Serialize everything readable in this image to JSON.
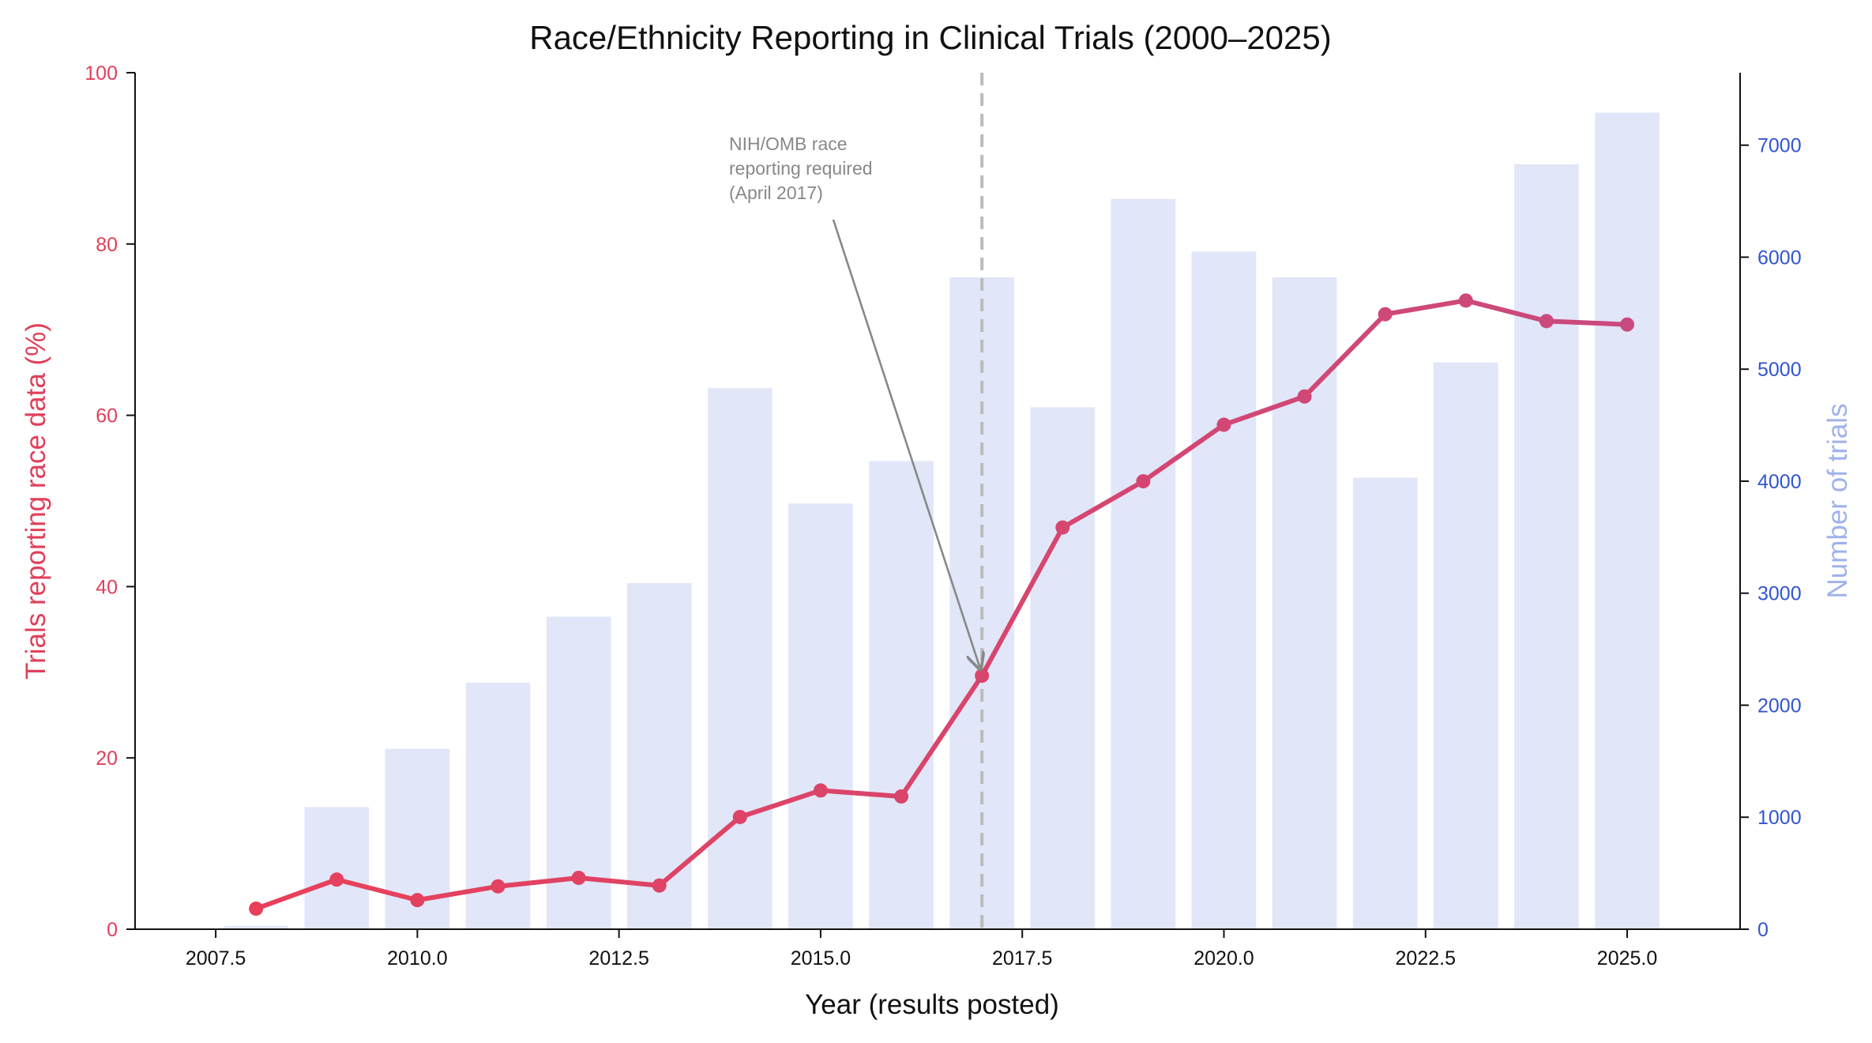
{
  "chart_data": {
    "type": "bar",
    "title": "Race/Ethnicity Reporting in Clinical Trials (2000–2025)",
    "xlabel": "Year (results posted)",
    "ylabel_left": "Trials reporting race data (%)",
    "ylabel_right": "Number of trials",
    "xlim": [
      2006.5,
      2026.4
    ],
    "ylim_left": [
      0,
      100
    ],
    "ylim_right": [
      0,
      7647
    ],
    "x_ticks": [
      "2007.5",
      "2010.0",
      "2012.5",
      "2015.0",
      "2017.5",
      "2020.0",
      "2022.5",
      "2025.0"
    ],
    "y_left_ticks": [
      "0",
      "20",
      "40",
      "60",
      "80",
      "100"
    ],
    "y_right_ticks": [
      "0",
      "1000",
      "2000",
      "3000",
      "4000",
      "5000",
      "6000",
      "7000"
    ],
    "grid": false,
    "years": [
      2008,
      2009,
      2010,
      2011,
      2012,
      2013,
      2014,
      2015,
      2016,
      2017,
      2018,
      2019,
      2020,
      2021,
      2022,
      2023,
      2024,
      2025
    ],
    "series": [
      {
        "name": "Number of trials",
        "type": "bar",
        "axis": "right",
        "values": [
          30,
          1090,
          1610,
          2200,
          2790,
          3090,
          4830,
          3800,
          4180,
          5820,
          4660,
          6520,
          6050,
          5820,
          4030,
          5060,
          6830,
          7290
        ]
      },
      {
        "name": "Trials reporting race data (%)",
        "type": "line",
        "axis": "left",
        "values": [
          2.4,
          5.8,
          3.4,
          5.0,
          6.0,
          5.1,
          13.1,
          16.2,
          15.5,
          29.6,
          46.9,
          52.3,
          58.9,
          62.2,
          71.8,
          73.4,
          71.0,
          70.6
        ]
      }
    ],
    "reference_line": {
      "x": 2017
    },
    "annotation": {
      "lines": [
        "NIH/OMB race",
        "reporting required",
        "(April 2017)"
      ],
      "arrow_target": {
        "x": 2017,
        "y": 30
      }
    },
    "colors": {
      "line_start": "#e8405a",
      "line_end": "#c94a7e",
      "bar": "#e1e6f8",
      "left_axis": "#e0405a",
      "right_axis": "#3355d0",
      "right_label": "#a0b2ea",
      "reference_line": "#bbbbbb",
      "annotation": "#888888"
    }
  }
}
